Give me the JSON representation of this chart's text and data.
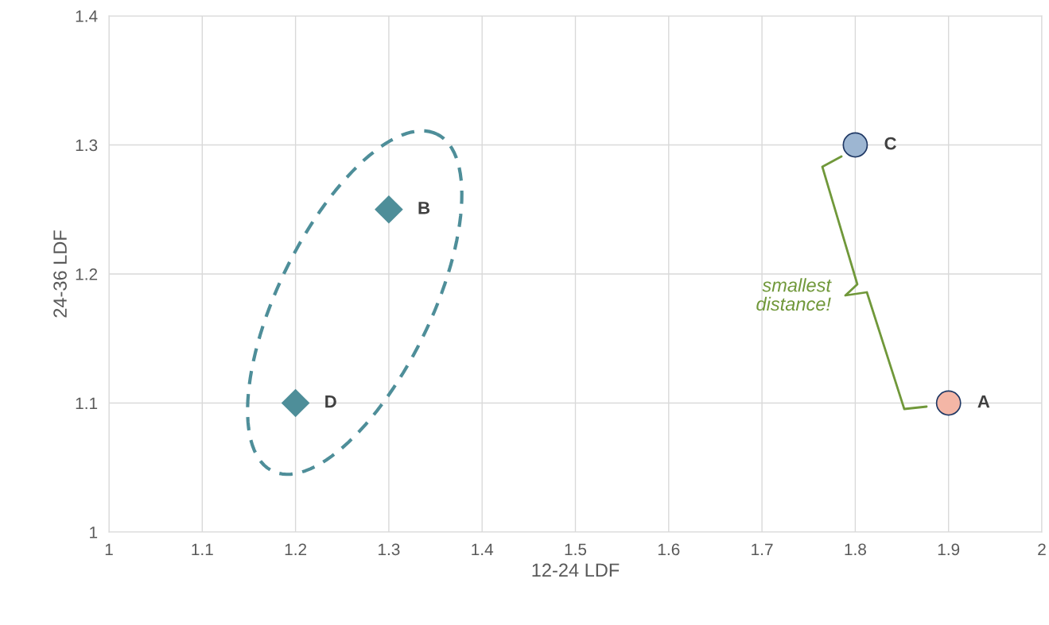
{
  "chart_data": {
    "type": "scatter",
    "xlabel": "12-24 LDF",
    "ylabel": "24-36 LDF",
    "xlim": [
      1,
      2
    ],
    "xticks": [
      1,
      1.1,
      1.2,
      1.3,
      1.4,
      1.5,
      1.6,
      1.7,
      1.8,
      1.9,
      2
    ],
    "ylim": [
      1,
      1.4
    ],
    "yticks": [
      1,
      1.1,
      1.2,
      1.3,
      1.4
    ],
    "grid": true,
    "legend": false,
    "series": [
      {
        "marker": "circle",
        "x": [
          1.9,
          1.8
        ],
        "values": [
          1.1,
          1.3
        ],
        "colors": [
          "#f4b6a6",
          "#9db6d2"
        ]
      },
      {
        "marker": "diamond",
        "x": [
          1.3,
          1.2
        ],
        "values": [
          1.25,
          1.1
        ],
        "color": "#4e8e99"
      }
    ],
    "annotations": [
      {
        "text": "A",
        "x": 1.9,
        "y": 1.1
      },
      {
        "text": "C",
        "x": 1.8,
        "y": 1.3
      },
      {
        "text": "B",
        "x": 1.3,
        "y": 1.25
      },
      {
        "text": "D",
        "x": 1.2,
        "y": 1.1
      },
      "smallest\ndistance!"
    ]
  }
}
